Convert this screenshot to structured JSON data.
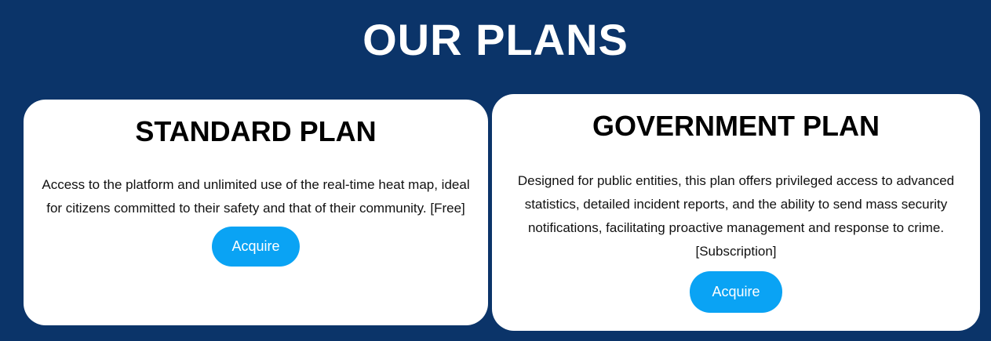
{
  "section": {
    "title": "OUR PLANS"
  },
  "plans": [
    {
      "title": "STANDARD PLAN",
      "description": "Access to the platform and unlimited use of the real-time heat map, ideal for citizens committed to their safety and that of their community. [Free]",
      "button_label": "Acquire"
    },
    {
      "title": "GOVERNMENT PLAN",
      "description": "Designed for public entities, this plan offers privileged access to advanced statistics, detailed incident reports, and the ability to send mass security notifications, facilitating proactive management and response to crime. [Subscription]",
      "button_label": "Acquire"
    }
  ],
  "colors": {
    "background": "#0b3469",
    "card": "#ffffff",
    "button": "#0aa3f4",
    "button_text": "#ffffff"
  }
}
